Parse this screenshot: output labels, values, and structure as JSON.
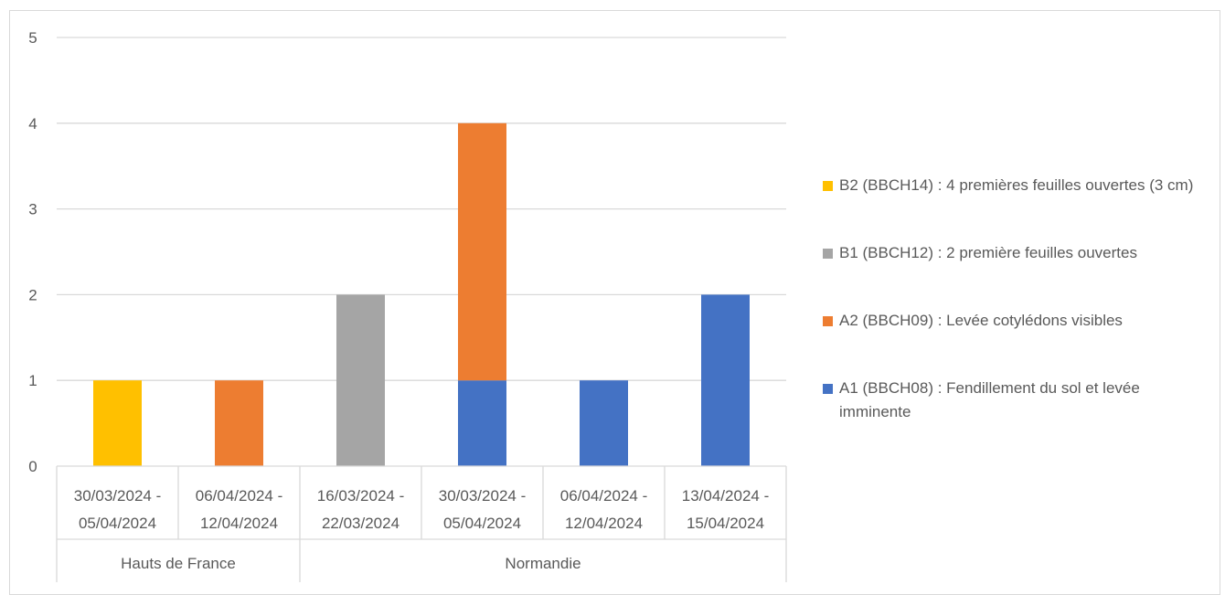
{
  "chart_data": {
    "type": "bar",
    "stacked": true,
    "categories": [
      {
        "line1": "30/03/2024 -",
        "line2": "05/04/2024",
        "group": "Hauts de France"
      },
      {
        "line1": "06/04/2024 -",
        "line2": "12/04/2024",
        "group": "Hauts de France"
      },
      {
        "line1": "16/03/2024 -",
        "line2": "22/03/2024",
        "group": "Normandie"
      },
      {
        "line1": "30/03/2024 -",
        "line2": "05/04/2024",
        "group": "Normandie"
      },
      {
        "line1": "06/04/2024 -",
        "line2": "12/04/2024",
        "group": "Normandie"
      },
      {
        "line1": "13/04/2024 -",
        "line2": "15/04/2024",
        "group": "Normandie"
      }
    ],
    "groups": [
      "Hauts de France",
      "Normandie"
    ],
    "series": [
      {
        "name": "A1 (BBCH08) : Fendillement du sol et levée imminente",
        "color": "#4472C4",
        "values": [
          0,
          0,
          0,
          1,
          1,
          2
        ]
      },
      {
        "name": "A2 (BBCH09) : Levée cotylédons visibles",
        "color": "#ED7D31",
        "values": [
          0,
          1,
          0,
          3,
          0,
          0
        ]
      },
      {
        "name": "B1 (BBCH12) : 2 première feuilles ouvertes",
        "color": "#A5A5A5",
        "values": [
          0,
          0,
          2,
          0,
          0,
          0
        ]
      },
      {
        "name": "B2 (BBCH14) : 4 premières feuilles ouvertes (3 cm)",
        "color": "#FFC000",
        "values": [
          1,
          0,
          0,
          0,
          0,
          0
        ]
      }
    ],
    "y_ticks": [
      "0",
      "1",
      "2",
      "3",
      "4",
      "5"
    ],
    "ylim": [
      0,
      5
    ],
    "grid": true,
    "legend_position": "right"
  },
  "legend": [
    {
      "label": "B2 (BBCH14) : 4 premières feuilles ouvertes (3 cm)",
      "color": "#FFC000"
    },
    {
      "label": "B1 (BBCH12) : 2 première feuilles ouvertes",
      "color": "#A5A5A5"
    },
    {
      "label": "A2 (BBCH09) : Levée cotylédons visibles",
      "color": "#ED7D31"
    },
    {
      "label": "A1 (BBCH08) : Fendillement du sol et levée imminente",
      "color": "#4472C4"
    }
  ]
}
